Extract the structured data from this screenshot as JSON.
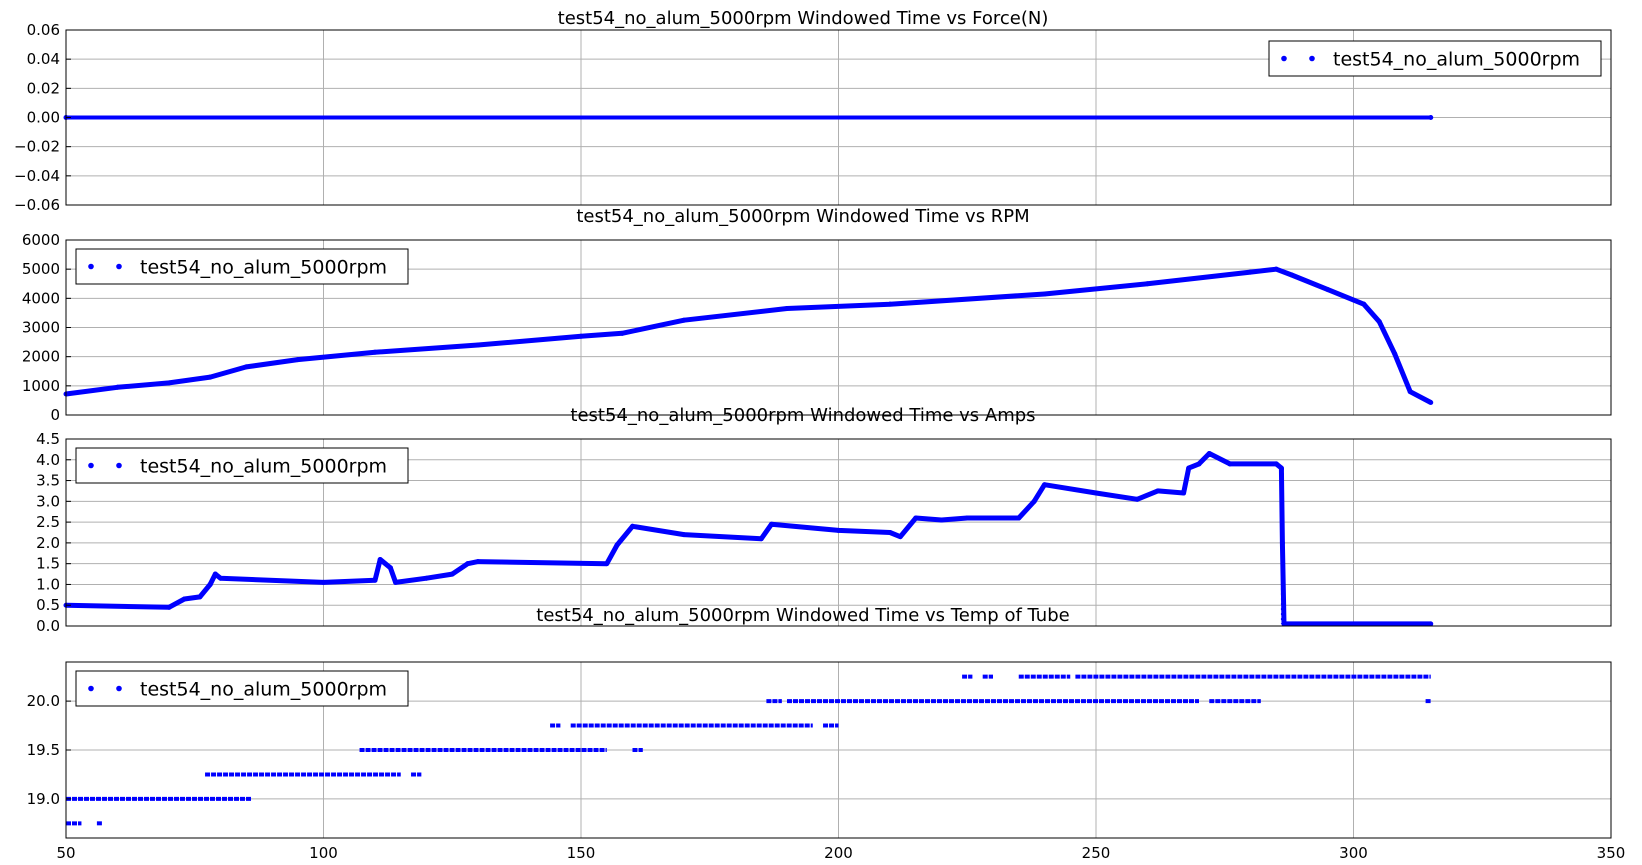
{
  "chart_data": [
    {
      "type": "scatter",
      "title": "test54_no_alum_5000rpm Windowed Time vs Force(N)",
      "xlim": [
        50,
        350
      ],
      "ylim": [
        -0.06,
        0.06
      ],
      "xticks": [],
      "yticks": [
        "0.06",
        "0.04",
        "0.02",
        "0.00",
        "−0.02",
        "−0.04",
        "−0.06"
      ],
      "ytick_values": [
        0.06,
        0.04,
        0.02,
        0.0,
        -0.02,
        -0.04,
        -0.06
      ],
      "grid": true,
      "legend_position": "upper-right",
      "series": [
        {
          "name": "test54_no_alum_5000rpm",
          "color": "#0000ff",
          "x": [
            50,
            315
          ],
          "y": [
            0,
            0
          ]
        }
      ]
    },
    {
      "type": "scatter",
      "title": "test54_no_alum_5000rpm Windowed Time vs RPM",
      "xlim": [
        50,
        350
      ],
      "ylim": [
        0,
        6000
      ],
      "xticks": [],
      "yticks": [
        "6000",
        "5000",
        "4000",
        "3000",
        "2000",
        "1000",
        "0"
      ],
      "ytick_values": [
        6000,
        5000,
        4000,
        3000,
        2000,
        1000,
        0
      ],
      "grid": true,
      "legend_position": "upper-left",
      "series": [
        {
          "name": "test54_no_alum_5000rpm",
          "color": "#0000ff",
          "x": [
            50,
            60,
            70,
            78,
            85,
            95,
            110,
            130,
            150,
            158,
            170,
            190,
            210,
            240,
            260,
            280,
            285,
            288,
            295,
            302,
            305,
            308,
            311,
            315
          ],
          "y": [
            720,
            950,
            1100,
            1300,
            1650,
            1900,
            2150,
            2400,
            2700,
            2800,
            3250,
            3650,
            3800,
            4150,
            4500,
            4900,
            5000,
            4800,
            4300,
            3800,
            3200,
            2100,
            800,
            430
          ]
        }
      ]
    },
    {
      "type": "scatter",
      "title": "test54_no_alum_5000rpm Windowed Time vs Amps",
      "xlim": [
        50,
        350
      ],
      "ylim": [
        0,
        4.5
      ],
      "xticks": [],
      "yticks": [
        "4.5",
        "4.0",
        "3.5",
        "3.0",
        "2.5",
        "2.0",
        "1.5",
        "1.0",
        "0.5",
        "0.0"
      ],
      "ytick_values": [
        4.5,
        4.0,
        3.5,
        3.0,
        2.5,
        2.0,
        1.5,
        1.0,
        0.5,
        0.0
      ],
      "grid": true,
      "legend_position": "upper-left",
      "series": [
        {
          "name": "test54_no_alum_5000rpm",
          "color": "#0000ff",
          "x": [
            50,
            70,
            73,
            76,
            78,
            79,
            80,
            100,
            110,
            111,
            113,
            114,
            120,
            125,
            128,
            130,
            155,
            157,
            160,
            170,
            185,
            187,
            200,
            210,
            212,
            215,
            220,
            225,
            235,
            238,
            240,
            250,
            258,
            262,
            267,
            268,
            270,
            272,
            276,
            285,
            286,
            286.2,
            286.5,
            315
          ],
          "y": [
            0.5,
            0.45,
            0.65,
            0.7,
            1.0,
            1.25,
            1.15,
            1.05,
            1.1,
            1.6,
            1.4,
            1.05,
            1.15,
            1.25,
            1.5,
            1.55,
            1.5,
            1.95,
            2.4,
            2.2,
            2.1,
            2.45,
            2.3,
            2.25,
            2.15,
            2.6,
            2.55,
            2.6,
            2.6,
            3.0,
            3.4,
            3.2,
            3.05,
            3.25,
            3.2,
            3.8,
            3.9,
            4.15,
            3.9,
            3.9,
            3.8,
            2.0,
            0.05,
            0.05
          ]
        }
      ]
    },
    {
      "type": "scatter",
      "title": "test54_no_alum_5000rpm Windowed Time vs Temp of Tube",
      "xlim": [
        50,
        350
      ],
      "ylim": [
        18.6,
        20.4
      ],
      "xticks": [
        "50",
        "100",
        "150",
        "200",
        "250",
        "300",
        "350"
      ],
      "xtick_values": [
        50,
        100,
        150,
        200,
        250,
        300,
        350
      ],
      "yticks": [
        "20.0",
        "19.5",
        "19.0"
      ],
      "ytick_values": [
        20.0,
        19.5,
        19.0
      ],
      "grid": true,
      "legend_position": "upper-left",
      "levels": [
        {
          "y": 18.75,
          "x_ranges": [
            [
              50,
              53
            ],
            [
              56,
              57
            ]
          ]
        },
        {
          "y": 19.0,
          "x_ranges": [
            [
              50,
              86
            ]
          ]
        },
        {
          "y": 19.25,
          "x_ranges": [
            [
              77,
              115
            ],
            [
              117,
              119
            ]
          ]
        },
        {
          "y": 19.5,
          "x_ranges": [
            [
              107,
              155
            ],
            [
              160,
              162
            ]
          ]
        },
        {
          "y": 19.75,
          "x_ranges": [
            [
              144,
              146
            ],
            [
              148,
              195
            ],
            [
              197,
              200
            ]
          ]
        },
        {
          "y": 20.0,
          "x_ranges": [
            [
              186,
              189
            ],
            [
              190,
              270
            ],
            [
              272,
              282
            ],
            [
              314,
              315
            ]
          ]
        },
        {
          "y": 20.25,
          "x_ranges": [
            [
              224,
              226
            ],
            [
              228,
              230
            ],
            [
              235,
              245
            ],
            [
              246,
              315
            ]
          ]
        }
      ],
      "series": [
        {
          "name": "test54_no_alum_5000rpm",
          "color": "#0000ff"
        }
      ]
    }
  ]
}
